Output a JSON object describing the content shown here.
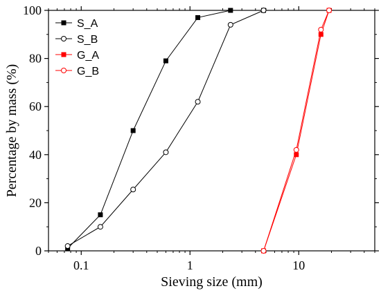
{
  "chart_data": {
    "type": "line",
    "title": "",
    "xlabel": "Sieving size (mm)",
    "ylabel": "Percentage by mass (%)",
    "xscale": "log",
    "xlim": [
      0.05,
      50
    ],
    "ylim": [
      0,
      100
    ],
    "xticks": [
      0.1,
      1,
      10
    ],
    "xtick_labels": [
      "0.1",
      "1",
      "10"
    ],
    "yticks": [
      0,
      20,
      40,
      60,
      80,
      100
    ],
    "ytick_labels": [
      "0",
      "20",
      "40",
      "60",
      "80",
      "100"
    ],
    "grid": false,
    "legend_position": "top-left",
    "series": [
      {
        "name": "S_A",
        "color": "#000000",
        "marker": "filled-square",
        "x": [
          0.075,
          0.15,
          0.3,
          0.6,
          1.18,
          2.36,
          4.75
        ],
        "y": [
          1,
          15,
          50,
          79,
          97,
          100,
          100
        ]
      },
      {
        "name": "S_B",
        "color": "#000000",
        "marker": "open-circle",
        "x": [
          0.075,
          0.15,
          0.3,
          0.6,
          1.18,
          2.36,
          4.75
        ],
        "y": [
          2,
          10,
          25.5,
          41,
          62,
          94,
          100
        ]
      },
      {
        "name": "G_A",
        "color": "#ff0000",
        "marker": "filled-square",
        "x": [
          4.75,
          9.5,
          16,
          19
        ],
        "y": [
          0,
          40,
          90,
          100
        ]
      },
      {
        "name": "G_B",
        "color": "#ff0000",
        "marker": "open-circle",
        "x": [
          4.75,
          9.5,
          16,
          19
        ],
        "y": [
          0,
          42,
          92,
          100
        ]
      }
    ]
  }
}
